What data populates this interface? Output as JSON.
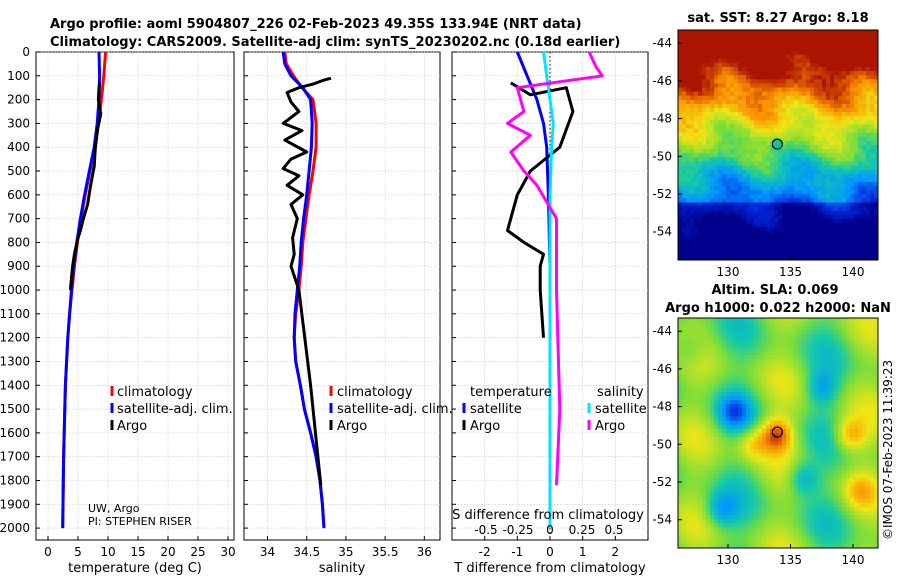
{
  "header": {
    "title_line1": "Argo profile: aoml 5904807_226 02-Feb-2023 49.35S 133.94E (NRT data)",
    "title_line2": "Climatology: CARS2009. Satellite-adj clim: synTS_20230202.nc (0.18d earlier)"
  },
  "credit": {
    "line1": "UW, Argo",
    "line2": "PI: STEPHEN RISER"
  },
  "watermark": "©IMOS 07-Feb-2023 11:39:23",
  "colors": {
    "climatology": "#ff0000",
    "satellite": "#0000ff",
    "argo": "#000000",
    "temp_diff_sat": "#0000ff",
    "sal_diff_sat": "#00e5ff",
    "sal_diff_argo": "#ff00ff",
    "marker_fill": "#00c8a0"
  },
  "chart_data": [
    {
      "id": "temperature",
      "type": "line",
      "xlabel": "temperature (deg C)",
      "ylabel": "",
      "xlim": [
        -2,
        31
      ],
      "ylim": [
        2050,
        0
      ],
      "xticks": [
        0,
        5,
        10,
        15,
        20,
        25,
        30
      ],
      "yticks": [
        0,
        100,
        200,
        300,
        400,
        500,
        600,
        700,
        800,
        900,
        1000,
        1100,
        1200,
        1300,
        1400,
        1500,
        1600,
        1700,
        1800,
        1900,
        2000
      ],
      "legend": [
        "climatology",
        "satellite-adj. clim.",
        "Argo"
      ],
      "series": [
        {
          "name": "climatology",
          "color": "red",
          "x": [
            9.6,
            9.3,
            8.9,
            8.4,
            7.8,
            7.0,
            6.2,
            5.5,
            4.9,
            4.4,
            4.0,
            3.6,
            3.3,
            3.1,
            2.9,
            2.8,
            2.7,
            2.6,
            2.55,
            2.5,
            2.45
          ],
          "y": [
            0,
            100,
            200,
            300,
            400,
            500,
            600,
            700,
            800,
            900,
            1000,
            1100,
            1200,
            1300,
            1400,
            1500,
            1600,
            1700,
            1800,
            1900,
            2000
          ]
        },
        {
          "name": "satellite-adj. clim.",
          "color": "blue",
          "x": [
            8.5,
            8.6,
            8.5,
            8.2,
            7.7,
            6.9,
            6.1,
            5.4,
            4.8,
            4.3,
            3.9,
            3.6,
            3.3,
            3.1,
            2.9,
            2.8,
            2.7,
            2.6,
            2.55,
            2.5,
            2.45
          ],
          "y": [
            0,
            100,
            200,
            300,
            400,
            500,
            600,
            700,
            800,
            900,
            1000,
            1100,
            1200,
            1300,
            1400,
            1500,
            1600,
            1700,
            1800,
            1900,
            2000
          ]
        },
        {
          "name": "Argo",
          "color": "black",
          "x": [
            8.6,
            8.5,
            8.4,
            8.8,
            8.3,
            7.9,
            7.7,
            7.1,
            6.6,
            5.9,
            5.4,
            4.9,
            4.4,
            4.1,
            3.9,
            3.75
          ],
          "y": [
            130,
            150,
            200,
            260,
            320,
            400,
            480,
            560,
            640,
            700,
            750,
            790,
            850,
            900,
            950,
            1000
          ]
        }
      ]
    },
    {
      "id": "salinity",
      "type": "line",
      "xlabel": "salinity",
      "ylabel": "",
      "xlim": [
        33.7,
        36.2
      ],
      "ylim": [
        2050,
        0
      ],
      "xticks": [
        34,
        34.5,
        35,
        35.5,
        36
      ],
      "legend": [
        "climatology",
        "satellite-adj. clim.",
        "Argo"
      ],
      "series": [
        {
          "name": "climatology",
          "color": "red",
          "x": [
            34.22,
            34.24,
            34.33,
            34.44,
            34.58,
            34.62,
            34.62,
            34.58,
            34.53,
            34.49,
            34.45,
            34.43,
            34.4,
            34.36,
            34.34,
            34.36,
            34.42,
            34.47,
            34.55,
            34.62,
            34.67,
            34.7,
            34.72
          ],
          "y": [
            0,
            50,
            100,
            150,
            200,
            300,
            400,
            500,
            600,
            700,
            800,
            900,
            1000,
            1100,
            1200,
            1300,
            1400,
            1500,
            1600,
            1700,
            1800,
            1900,
            2000
          ]
        },
        {
          "name": "satellite-adj. clim.",
          "color": "blue",
          "x": [
            34.2,
            34.22,
            34.3,
            34.45,
            34.55,
            34.57,
            34.56,
            34.53,
            34.5,
            34.46,
            34.43,
            34.41,
            34.38,
            34.35,
            34.34,
            34.36,
            34.42,
            34.47,
            34.55,
            34.62,
            34.67,
            34.7,
            34.72
          ],
          "y": [
            0,
            50,
            100,
            150,
            200,
            300,
            400,
            500,
            600,
            700,
            800,
            900,
            1000,
            1100,
            1200,
            1300,
            1400,
            1500,
            1600,
            1700,
            1800,
            1900,
            2000
          ]
        },
        {
          "name": "Argo",
          "color": "black",
          "x": [
            34.81,
            34.7,
            34.58,
            34.4,
            34.25,
            34.3,
            34.4,
            34.2,
            34.44,
            34.22,
            34.5,
            34.3,
            34.2,
            34.4,
            34.25,
            34.45,
            34.3,
            34.38,
            34.32,
            34.34,
            34.3,
            34.4,
            34.55,
            34.68
          ],
          "y": [
            110,
            120,
            135,
            150,
            170,
            210,
            250,
            300,
            330,
            370,
            420,
            450,
            490,
            520,
            560,
            600,
            640,
            700,
            780,
            850,
            900,
            1000,
            1400,
            1820
          ]
        }
      ]
    },
    {
      "id": "differences",
      "type": "line",
      "xlabel": "T difference from climatology",
      "x2label": "S difference from climatology",
      "xlim": [
        -3,
        3
      ],
      "ylim": [
        2050,
        0
      ],
      "xticks": [
        -2,
        -1,
        0,
        1,
        2
      ],
      "x2ticks": [
        "-0.5",
        "-0.25",
        "0",
        "0.25",
        "0.5"
      ],
      "legend_temperature_title": "temperature",
      "legend_salinity_title": "salinity",
      "legend_temperature": [
        "satellite",
        "Argo"
      ],
      "legend_salinity": [
        "satellite",
        "Argo"
      ],
      "series": [
        {
          "name": "temperature satellite",
          "color": "blue",
          "x": [
            -1.0,
            -0.7,
            -0.4,
            -0.2,
            -0.1,
            -0.05,
            0,
            0
          ],
          "y": [
            0,
            100,
            200,
            300,
            400,
            600,
            900,
            2000
          ]
        },
        {
          "name": "temperature Argo",
          "color": "black",
          "x": [
            -1.2,
            -0.6,
            0.5,
            0.7,
            0.3,
            -0.6,
            -1.0,
            -1.3,
            -0.8,
            -0.2,
            -0.3,
            -0.3,
            -0.2
          ],
          "y": [
            130,
            180,
            150,
            250,
            400,
            500,
            600,
            750,
            800,
            850,
            900,
            1000,
            1200
          ]
        },
        {
          "name": "salinity satellite",
          "color": "cyan",
          "x": [
            -0.2,
            -0.1,
            0,
            0.1,
            0.05,
            0,
            0,
            0
          ],
          "y": [
            0,
            100,
            200,
            300,
            400,
            600,
            1000,
            2000
          ]
        },
        {
          "name": "salinity Argo",
          "color": "magenta",
          "x": [
            1.2,
            1.4,
            1.6,
            -1.0,
            -0.8,
            -1.3,
            -0.6,
            -1.2,
            -0.8,
            -0.4,
            0.2,
            0.2,
            0.3,
            0.2
          ],
          "y": [
            0,
            60,
            100,
            150,
            250,
            300,
            350,
            420,
            500,
            560,
            700,
            1000,
            1500,
            1820
          ]
        }
      ]
    },
    {
      "id": "sst_map",
      "type": "heatmap",
      "title": "sat. SST: 8.27 Argo: 8.18",
      "xticks": [
        130,
        135,
        140
      ],
      "yticks": [
        -44,
        -46,
        -48,
        -50,
        -52,
        -54
      ],
      "xlim": [
        126,
        142
      ],
      "ylim": [
        -55.5,
        -43.3
      ],
      "argo_position": [
        133.94,
        -49.35
      ]
    },
    {
      "id": "sla_map",
      "type": "heatmap",
      "title_line1": "Altim. SLA: 0.069",
      "title_line2": "Argo h1000: 0.022 h2000: NaN",
      "xticks": [
        130,
        135,
        140
      ],
      "yticks": [
        -44,
        -46,
        -48,
        -50,
        -52,
        -54
      ],
      "xlim": [
        126,
        142
      ],
      "ylim": [
        -55.5,
        -43.3
      ],
      "argo_position": [
        133.94,
        -49.35
      ]
    }
  ]
}
